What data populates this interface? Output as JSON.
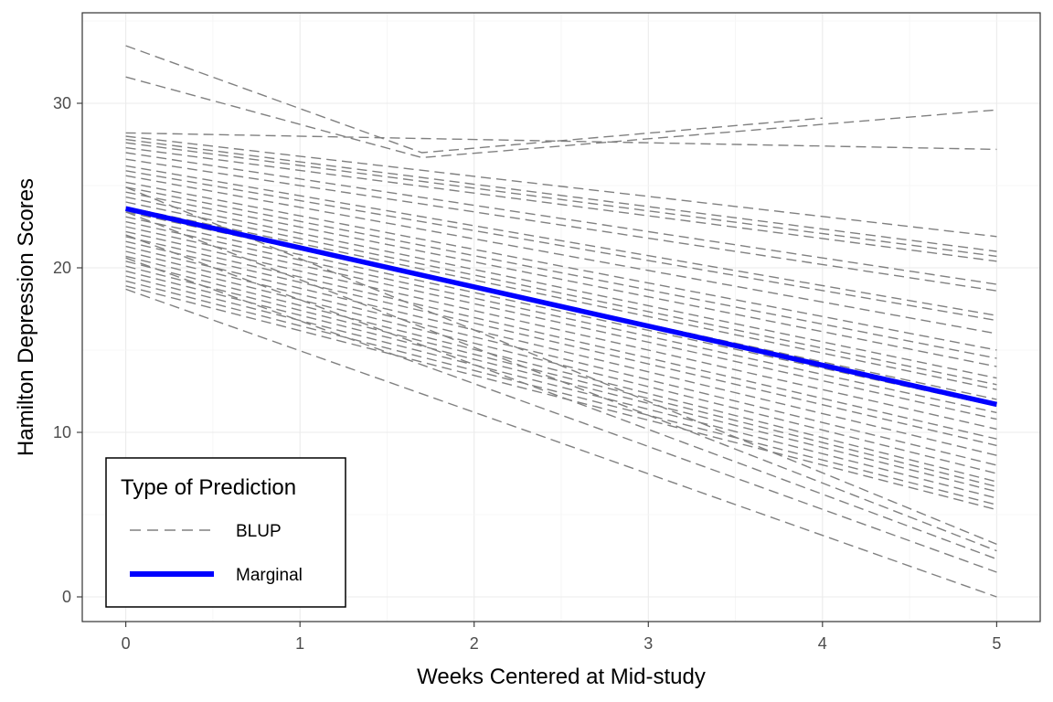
{
  "chart_data": {
    "type": "line",
    "title": "",
    "xlabel": "Weeks Centered at Mid-study",
    "ylabel": "Hamilton Depression Scores",
    "xlim": [
      -0.25,
      5.25
    ],
    "ylim": [
      -1.5,
      35.5
    ],
    "x_ticks": [
      0,
      1,
      2,
      3,
      4,
      5
    ],
    "y_ticks": [
      0,
      10,
      20,
      30
    ],
    "grid": true,
    "legend": {
      "title": "Type of Prediction",
      "position": "bottom-left",
      "entries": [
        {
          "label": "BLUP",
          "style": "dashed",
          "color": "#808080"
        },
        {
          "label": "Marginal",
          "style": "solid-thick",
          "color": "#0000ff"
        }
      ]
    },
    "series": [
      {
        "name": "Marginal",
        "color": "#0000ff",
        "x": [
          0,
          5
        ],
        "y": [
          23.6,
          11.7
        ]
      },
      {
        "name": "BLUP",
        "color": "#808080",
        "lines": [
          [
            0,
            33.5,
            1.7,
            27.0,
            4,
            29.1
          ],
          [
            0,
            31.6,
            1.7,
            26.7,
            5,
            29.6
          ],
          [
            0,
            28.2,
            5,
            27.2
          ],
          [
            0,
            28.0,
            5,
            21.9
          ],
          [
            0,
            27.8,
            5,
            21.0
          ],
          [
            0,
            27.6,
            5,
            20.7
          ],
          [
            0,
            27.3,
            5,
            20.4
          ],
          [
            0,
            27.0,
            5,
            19.0
          ],
          [
            0,
            26.6,
            5,
            18.6
          ],
          [
            0,
            26.2,
            5,
            17.1
          ],
          [
            0,
            25.9,
            5,
            16.8
          ],
          [
            0,
            25.6,
            5,
            16.0
          ],
          [
            0,
            25.2,
            5,
            15.0
          ],
          [
            0,
            24.9,
            5,
            14.5
          ],
          [
            0,
            24.6,
            5,
            14.0
          ],
          [
            0,
            24.3,
            5,
            13.3
          ],
          [
            0,
            24.0,
            5,
            12.9
          ],
          [
            0,
            23.7,
            5,
            12.6
          ],
          [
            0,
            23.4,
            5,
            12.0
          ],
          [
            0,
            23.1,
            5,
            11.6
          ],
          [
            0,
            22.8,
            5,
            11.2
          ],
          [
            0,
            22.5,
            5,
            10.8
          ],
          [
            0,
            22.2,
            5,
            10.2
          ],
          [
            0,
            21.9,
            5,
            9.6
          ],
          [
            0,
            21.6,
            5,
            9.2
          ],
          [
            0,
            21.3,
            5,
            8.6
          ],
          [
            0,
            21.0,
            5,
            8.0
          ],
          [
            0,
            20.7,
            5,
            7.5
          ],
          [
            0,
            20.4,
            5,
            7.0
          ],
          [
            0,
            20.1,
            5,
            6.7
          ],
          [
            0,
            19.8,
            5,
            6.4
          ],
          [
            0,
            19.5,
            5,
            6.0
          ],
          [
            0,
            19.2,
            5,
            5.6
          ],
          [
            0,
            18.9,
            5,
            5.3
          ],
          [
            0,
            24.9,
            5,
            3.2
          ],
          [
            0,
            23.4,
            5,
            2.8
          ],
          [
            0,
            22.0,
            5,
            2.3
          ],
          [
            0,
            20.6,
            5,
            1.5
          ],
          [
            0,
            18.7,
            5,
            0.0
          ]
        ]
      }
    ]
  }
}
